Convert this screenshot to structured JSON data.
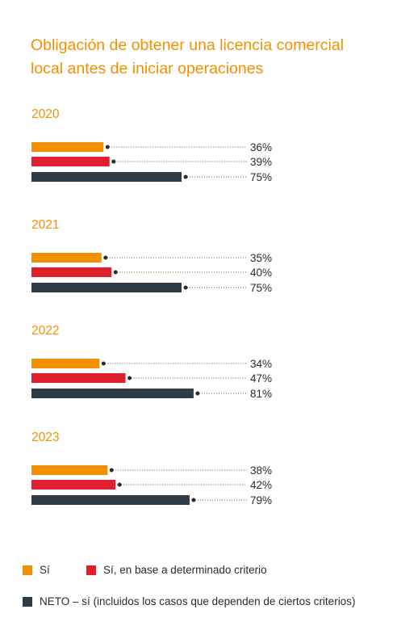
{
  "title_line1": "Obligación de obtener una licencia comercial",
  "title_line2": "local antes de iniciar operaciones",
  "colors": {
    "si": "#f29100",
    "criterio": "#e0202c",
    "neto": "#2f3b46",
    "year": "#f29100",
    "text": "#2b2b2b"
  },
  "legend": {
    "si": "Sí",
    "criterio": "Sí, en base a determinado criterio",
    "neto": "NETO – sí (incluidos los casos que dependen de ciertos criterios)"
  },
  "chart_data": {
    "type": "bar",
    "orientation": "horizontal",
    "xlim": [
      0,
      100
    ],
    "groups": [
      {
        "year": "2020",
        "values": {
          "si": 36,
          "criterio": 39,
          "neto": 75
        }
      },
      {
        "year": "2021",
        "values": {
          "si": 35,
          "criterio": 40,
          "neto": 75
        }
      },
      {
        "year": "2022",
        "values": {
          "si": 34,
          "criterio": 47,
          "neto": 81
        }
      },
      {
        "year": "2023",
        "values": {
          "si": 38,
          "criterio": 42,
          "neto": 79
        }
      }
    ],
    "series": [
      {
        "key": "si"
      },
      {
        "key": "criterio"
      },
      {
        "key": "neto"
      }
    ]
  }
}
